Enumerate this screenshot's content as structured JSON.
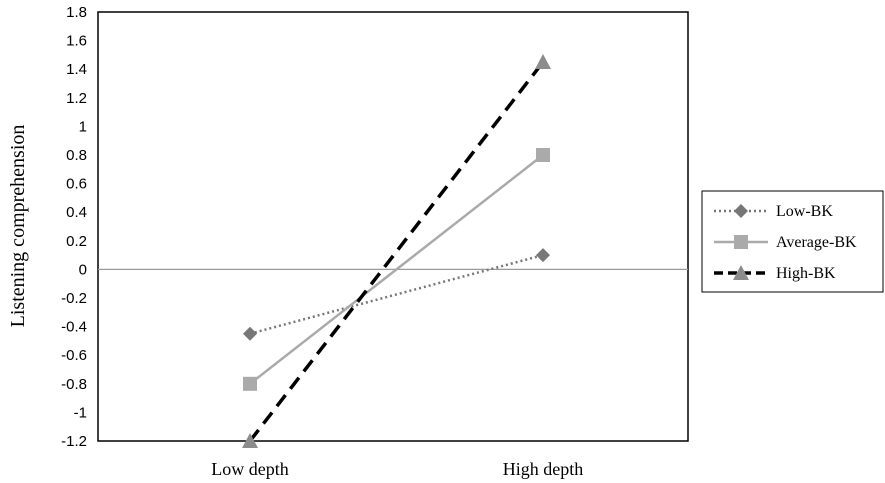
{
  "chart_data": {
    "type": "line",
    "categories": [
      "Low depth",
      "High depth"
    ],
    "ylabel": "Listening comprehension",
    "xlabel": "",
    "ylim": [
      -1.2,
      1.8
    ],
    "yticks": [
      "1.8",
      "1.6",
      "1.4",
      "1.2",
      "1",
      "0.8",
      "0.6",
      "0.4",
      "0.2",
      "0",
      "-0.2",
      "-0.4",
      "-0.6",
      "-0.8",
      "-1",
      "-1.2"
    ],
    "grid": false,
    "legend_position": "right",
    "series": [
      {
        "name": "Low-BK",
        "values": [
          -0.45,
          0.1
        ],
        "color": "#777777",
        "marker": "diamond",
        "line": "dotted"
      },
      {
        "name": "Average-BK",
        "values": [
          -0.8,
          0.8
        ],
        "color": "#aaaaaa",
        "marker": "square",
        "line": "solid"
      },
      {
        "name": "High-BK",
        "values": [
          -1.2,
          1.45
        ],
        "color": "#000000",
        "marker_color": "#8c8c8c",
        "marker": "triangle",
        "line": "dashed"
      }
    ]
  }
}
